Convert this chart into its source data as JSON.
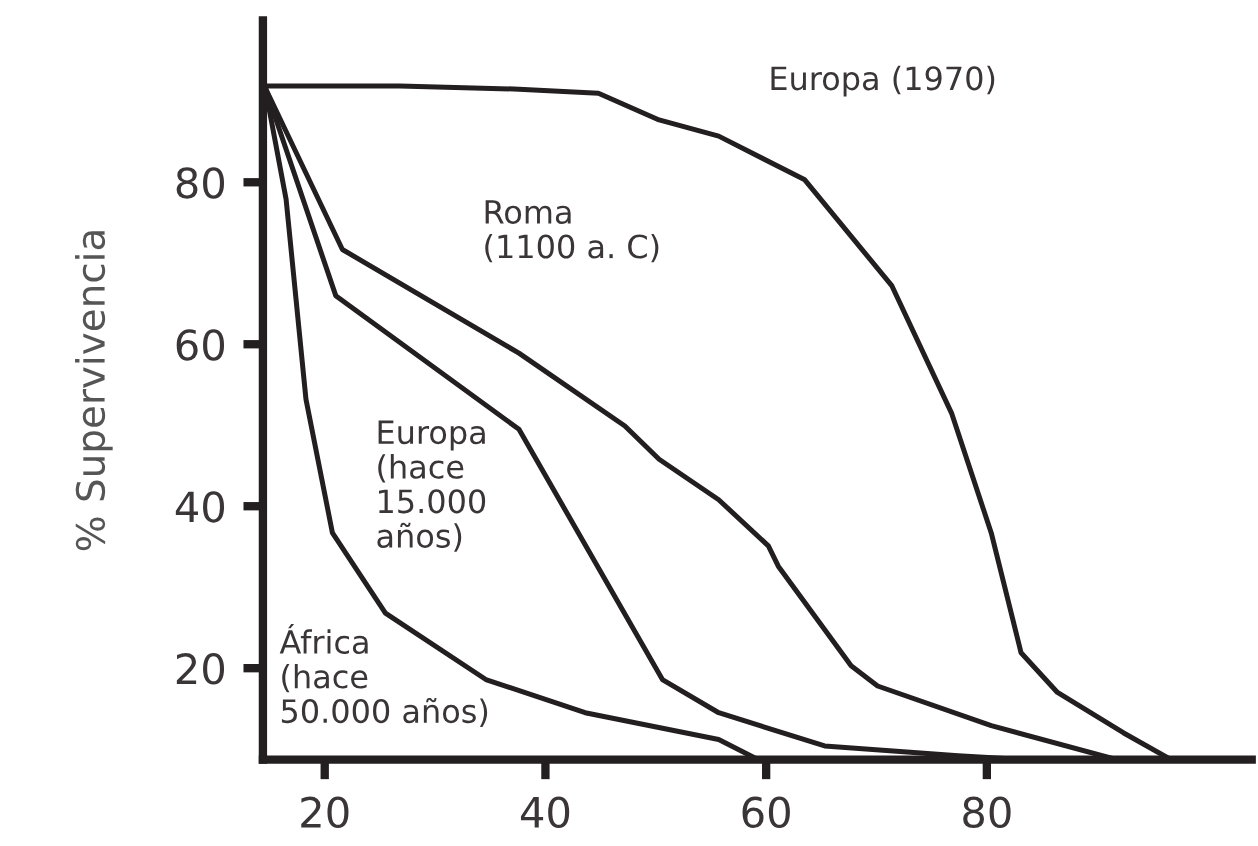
{
  "chart_data": {
    "type": "line",
    "ylabel": "% Supervivencia",
    "xlim": [
      14.4,
      104
    ],
    "ylim": [
      8.7,
      100
    ],
    "xticks": [
      20,
      40,
      60,
      80
    ],
    "yticks": [
      20,
      40,
      60,
      80
    ],
    "grid": false,
    "legend": false,
    "marker": "none",
    "line_style": "solid",
    "series": [
      {
        "name": "Europa (1970)",
        "color": "#231f20",
        "x": [
          14.7,
          26.8,
          37.6,
          44.8,
          50.3,
          55.7,
          63.5,
          71.4,
          76.8,
          80.4,
          83.1,
          86.4,
          92.4,
          96.7
        ],
        "values": [
          91.9,
          91.9,
          91.5,
          91.0,
          87.7,
          85.7,
          80.3,
          67.2,
          51.5,
          36.7,
          21.9,
          17.0,
          12.0,
          8.7
        ]
      },
      {
        "name": "Roma\n(1100 a. C)",
        "color": "#231f20",
        "x": [
          14.6,
          21.6,
          37.6,
          47.2,
          50.3,
          55.7,
          60.2,
          61.1,
          67.7,
          70.1,
          80.4,
          91.8
        ],
        "values": [
          91.7,
          71.7,
          58.9,
          49.9,
          45.8,
          40.8,
          35.1,
          32.6,
          20.3,
          17.8,
          12.9,
          8.7
        ]
      },
      {
        "name": "Europa\n(hace\n15.000\naños)",
        "color": "#231f20",
        "x": [
          14.6,
          21.0,
          37.6,
          50.6,
          55.7,
          65.3,
          77.4,
          83.4
        ],
        "values": [
          91.7,
          66.0,
          49.5,
          18.6,
          14.5,
          10.4,
          9.2,
          8.7
        ]
      },
      {
        "name": "África\n(hace\n50.000 años)",
        "color": "#231f20",
        "x": [
          14.6,
          16.5,
          18.3,
          20.7,
          25.5,
          34.6,
          43.6,
          55.7,
          59.3
        ],
        "values": [
          91.7,
          77.9,
          53.2,
          36.7,
          26.8,
          18.6,
          14.5,
          11.2,
          8.7
        ]
      }
    ]
  }
}
